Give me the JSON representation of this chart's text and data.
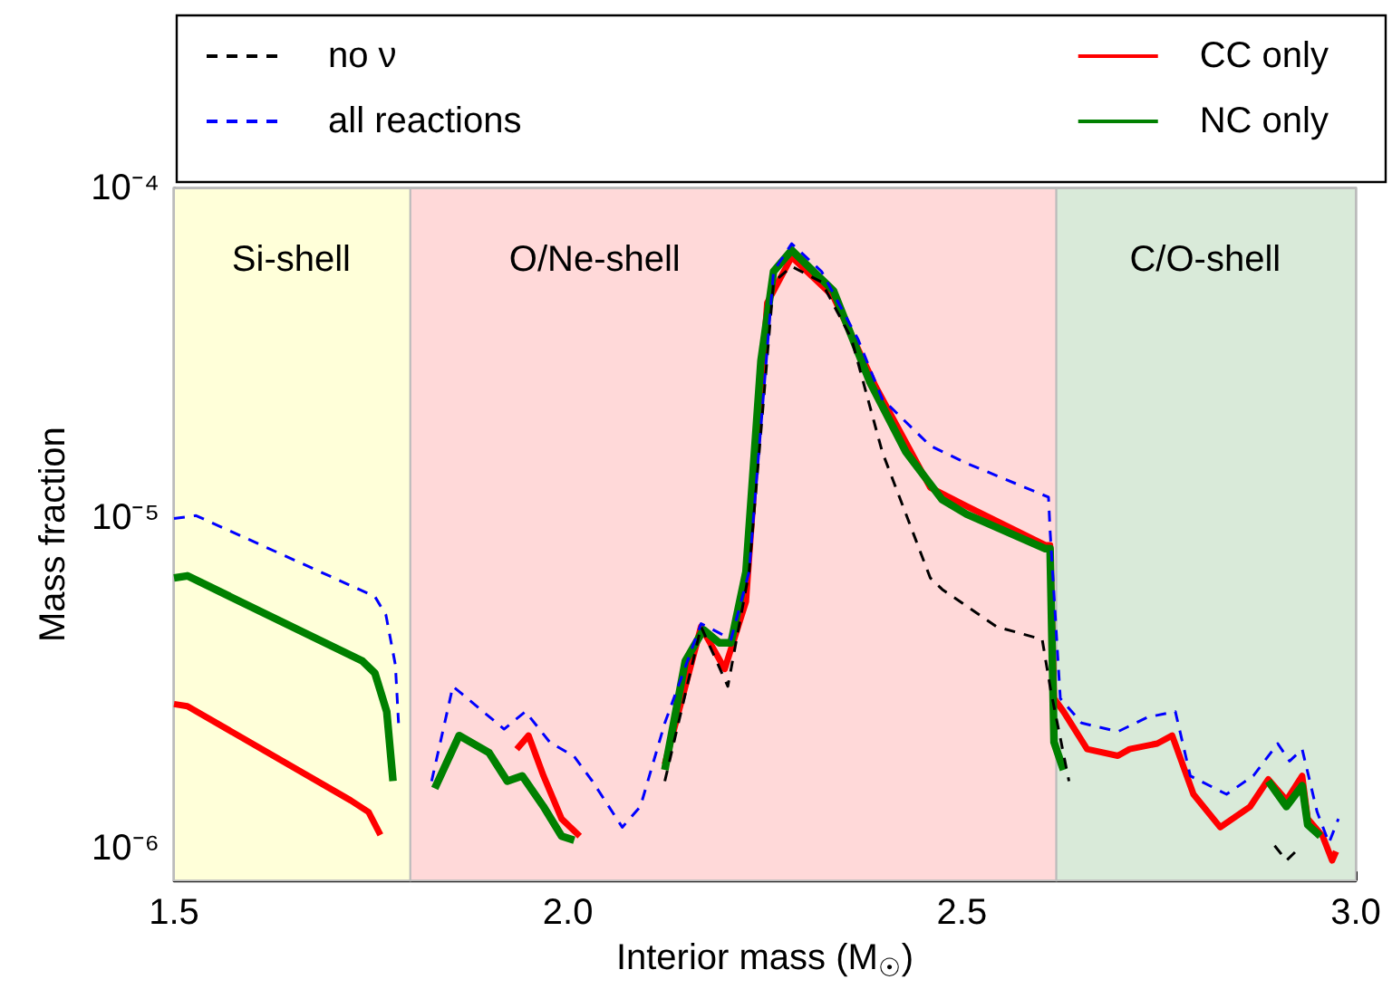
{
  "chart_data": {
    "type": "line",
    "xlabel": "Interior mass (M$_{☉}$)",
    "ylabel": "Mass fraction",
    "log": "y",
    "xlim": [
      1.5,
      3.0
    ],
    "ylim": [
      8e-07,
      0.0001
    ],
    "xticks": [
      {
        "value": 1.5,
        "label": "1.5"
      },
      {
        "value": 1.55,
        "label": null
      },
      {
        "value": 1.6,
        "label": null
      },
      {
        "value": 1.65,
        "label": null
      },
      {
        "value": 1.7,
        "label": null
      },
      {
        "value": 1.75,
        "label": null
      },
      {
        "value": 1.8,
        "label": null
      },
      {
        "value": 1.85,
        "label": null
      },
      {
        "value": 1.9,
        "label": null
      },
      {
        "value": 1.95,
        "label": null
      },
      {
        "value": 2,
        "label": "2.0"
      },
      {
        "value": 2.05,
        "label": null
      },
      {
        "value": 2.1,
        "label": null
      },
      {
        "value": 2.15,
        "label": null
      },
      {
        "value": 2.2,
        "label": null
      },
      {
        "value": 2.25,
        "label": null
      },
      {
        "value": 2.3,
        "label": null
      },
      {
        "value": 2.35,
        "label": null
      },
      {
        "value": 2.4,
        "label": null
      },
      {
        "value": 2.45,
        "label": null
      },
      {
        "value": 2.5,
        "label": "2.5"
      },
      {
        "value": 2.55,
        "label": null
      },
      {
        "value": 2.6,
        "label": null
      },
      {
        "value": 2.65,
        "label": null
      },
      {
        "value": 2.7,
        "label": null
      },
      {
        "value": 2.75,
        "label": null
      },
      {
        "value": 2.8,
        "label": null
      },
      {
        "value": 2.85,
        "label": null
      },
      {
        "value": 2.9,
        "label": null
      },
      {
        "value": 2.95,
        "label": null
      },
      {
        "value": 3,
        "label": "3.0"
      }
    ],
    "yticks": [
      {
        "value": 9e-07,
        "label": null
      },
      {
        "value": 1e-06,
        "label": "10⁻⁶"
      },
      {
        "value": 2e-06,
        "label": null
      },
      {
        "value": 3e-06,
        "label": null
      },
      {
        "value": 4e-06,
        "label": null
      },
      {
        "value": 5e-06,
        "label": null
      },
      {
        "value": 6e-06,
        "label": null
      },
      {
        "value": 7e-06,
        "label": null
      },
      {
        "value": 8e-06,
        "label": null
      },
      {
        "value": 9e-06,
        "label": null
      },
      {
        "value": 1e-05,
        "label": "10⁻⁵"
      },
      {
        "value": 2e-05,
        "label": null
      },
      {
        "value": 3e-05,
        "label": null
      },
      {
        "value": 4e-05,
        "label": null
      },
      {
        "value": 5e-05,
        "label": null
      },
      {
        "value": 6e-05,
        "label": null
      },
      {
        "value": 7e-05,
        "label": null
      },
      {
        "value": 8e-05,
        "label": null
      },
      {
        "value": 9e-05,
        "label": null
      },
      {
        "value": 0.0001,
        "label": "10⁻⁴"
      }
    ],
    "legend": "top",
    "marker": "none",
    "bands": [
      {
        "axis": "x",
        "from": 1.5,
        "to": 1.8,
        "label": "Si-shell",
        "color": "#ffffd9"
      },
      {
        "axis": "x",
        "from": 1.8,
        "to": 2.62,
        "label": "O/Ne-shell",
        "color": "#ffd9d9"
      },
      {
        "axis": "x",
        "from": 2.62,
        "to": 3.0,
        "label": "C/O-shell",
        "color": "#d9ead9"
      }
    ],
    "series": [
      {
        "name": "no ν",
        "color": "#000000",
        "line_style": "dashed",
        "x": [
          2.123,
          2.169,
          2.203,
          2.23,
          2.261,
          2.284,
          2.322,
          2.36,
          2.399,
          2.46,
          2.475,
          2.544,
          2.602,
          2.613,
          2.636,
          2.77,
          2.897,
          2.912,
          2.924
        ],
        "values": [
          1.6e-06,
          4.7e-06,
          3.1e-06,
          6.9e-06,
          5.2e-05,
          5.8e-05,
          5.2e-05,
          3.5e-05,
          1.59e-05,
          6.6e-06,
          6.1e-06,
          4.7e-06,
          4.3e-06,
          3e-06,
          1.6e-06,
          null,
          1.02e-06,
          9.2e-07,
          9.8e-07
        ]
      },
      {
        "name": "all reactions",
        "color": "#0000ff",
        "line_style": "dashed",
        "x": [
          1.5,
          1.528,
          1.755,
          1.769,
          1.781,
          1.785,
          1.8,
          1.827,
          1.854,
          1.919,
          1.946,
          1.977,
          2.008,
          2.031,
          2.069,
          2.092,
          2.123,
          2.169,
          2.192,
          2.207,
          2.23,
          2.261,
          2.284,
          2.322,
          2.368,
          2.399,
          2.46,
          2.506,
          2.61,
          2.612,
          2.625,
          2.652,
          2.698,
          2.736,
          2.771,
          2.79,
          2.836,
          2.87,
          2.901,
          2.916,
          2.932,
          2.951,
          2.966,
          2.978
        ],
        "values": [
          1e-05,
          1.02e-05,
          5.8e-06,
          5.1e-06,
          3.6e-06,
          2.4e-06,
          null,
          1.6e-06,
          3.1e-06,
          2.3e-06,
          2.6e-06,
          2.1e-06,
          1.9e-06,
          1.6e-06,
          1.16e-06,
          1.34e-06,
          2.4e-06,
          4.8e-06,
          4.5e-06,
          4.3e-06,
          6.9e-06,
          5.6e-05,
          6.8e-05,
          5.6e-05,
          3.5e-05,
          2.3e-05,
          1.66e-05,
          1.47e-05,
          1.16e-05,
          9.2e-06,
          2.85e-06,
          2.4e-06,
          2.26e-06,
          2.5e-06,
          2.6e-06,
          1.66e-06,
          1.46e-06,
          1.66e-06,
          2.08e-06,
          1.84e-06,
          2e-06,
          1.29e-06,
          1.04e-06,
          1.23e-06
        ]
      },
      {
        "name": "CC only",
        "color": "#ff0000",
        "line_style": "solid",
        "x": [
          1.5,
          1.517,
          1.724,
          1.747,
          1.762,
          1.85,
          1.935,
          1.95,
          1.969,
          1.992,
          2.015,
          2.065,
          2.123,
          2.169,
          2.199,
          2.226,
          2.253,
          2.284,
          2.337,
          2.391,
          2.46,
          2.506,
          2.606,
          2.612,
          2.617,
          2.629,
          2.659,
          2.698,
          2.713,
          2.748,
          2.767,
          2.794,
          2.828,
          2.866,
          2.889,
          2.912,
          2.932,
          2.939,
          2.958,
          2.97,
          2.975
        ],
        "values": [
          2.74e-06,
          2.7e-06,
          1.4e-06,
          1.29e-06,
          1.1e-06,
          null,
          2e-06,
          2.2e-06,
          1.66e-06,
          1.23e-06,
          1.09e-06,
          null,
          1.8e-06,
          4.7e-06,
          3.5e-06,
          5.6e-06,
          4.5e-05,
          6.2e-05,
          4.7e-05,
          2.5e-05,
          1.24e-05,
          1.09e-05,
          8.3e-06,
          8.3e-06,
          2.85e-06,
          2.6e-06,
          2e-06,
          1.91e-06,
          2e-06,
          2.08e-06,
          2.2e-06,
          1.46e-06,
          1.16e-06,
          1.34e-06,
          1.62e-06,
          1.4e-06,
          1.66e-06,
          1.23e-06,
          1.09e-06,
          9.2e-07,
          9.8e-07
        ]
      },
      {
        "name": "NC only",
        "color": "#008000",
        "line_style": "solid",
        "x": [
          1.5,
          1.517,
          1.739,
          1.755,
          1.77,
          1.778,
          1.8,
          1.831,
          1.862,
          1.9,
          1.923,
          1.942,
          1.969,
          1.992,
          2.008,
          2.065,
          2.123,
          2.149,
          2.172,
          2.192,
          2.207,
          2.226,
          2.245,
          2.261,
          2.284,
          2.337,
          2.383,
          2.429,
          2.475,
          2.506,
          2.606,
          2.612,
          2.617,
          2.629,
          2.76,
          2.889,
          2.912,
          2.932,
          2.939,
          2.955
        ],
        "values": [
          6.6e-06,
          6.7e-06,
          3.7e-06,
          3.4e-06,
          2.6e-06,
          1.6e-06,
          null,
          1.52e-06,
          2.2e-06,
          1.95e-06,
          1.6e-06,
          1.66e-06,
          1.34e-06,
          1.09e-06,
          1.06e-06,
          null,
          1.73e-06,
          3.7e-06,
          4.6e-06,
          4.2e-06,
          4.2e-06,
          6.9e-06,
          3e-05,
          5.6e-05,
          6.5e-05,
          4.9e-05,
          2.6e-05,
          1.59e-05,
          1.14e-05,
          1.03e-05,
          8.1e-06,
          8.1e-06,
          2.1e-06,
          1.73e-06,
          null,
          1.6e-06,
          1.34e-06,
          1.55e-06,
          1.18e-06,
          1.09e-06
        ]
      }
    ]
  }
}
